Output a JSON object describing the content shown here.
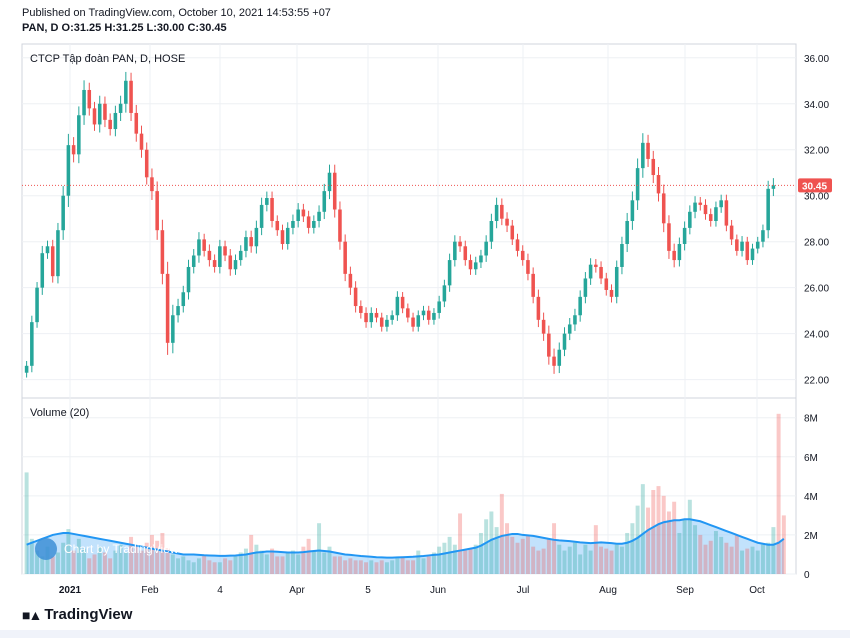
{
  "header": {
    "published": "Published on TradingView.com, October 10, 2021 14:53:55 +07",
    "ohlc": "PAN, D O:31.25 H:31.25 L:30.00 C:30.45"
  },
  "footer": {
    "brand": "TradingView"
  },
  "chart_data": {
    "type": "candlestick",
    "title": "CTCP Tập đoàn PAN, D, HOSE",
    "last_price": "30.45",
    "price_axis": {
      "ylim": [
        21.2,
        36.6
      ],
      "ticks": [
        "36.00",
        "34.00",
        "32.00",
        "30.00",
        "28.00",
        "26.00",
        "24.00",
        "22.00"
      ]
    },
    "time_axis": {
      "ticks": [
        "2021",
        "Feb",
        "4",
        "Apr",
        "5",
        "Jun",
        "Jul",
        "Aug",
        "Sep",
        "Oct"
      ]
    },
    "up_color": "#26a69a",
    "down_color": "#ef5350",
    "closes": [
      22.6,
      24.5,
      26.0,
      27.5,
      27.8,
      26.5,
      28.5,
      30.0,
      32.2,
      31.8,
      33.5,
      34.6,
      33.8,
      33.1,
      34.0,
      33.3,
      32.9,
      33.6,
      34.0,
      35.0,
      33.6,
      32.7,
      32.0,
      30.8,
      30.2,
      28.5,
      26.6,
      23.6,
      24.8,
      25.2,
      25.8,
      26.9,
      27.4,
      28.1,
      27.6,
      27.2,
      26.9,
      27.8,
      27.4,
      26.8,
      27.2,
      27.6,
      28.2,
      27.8,
      28.6,
      29.6,
      29.9,
      28.9,
      28.5,
      27.9,
      28.6,
      28.9,
      29.4,
      29.1,
      28.6,
      28.9,
      29.3,
      30.2,
      31.0,
      29.4,
      28.0,
      26.6,
      26.0,
      25.2,
      24.9,
      24.5,
      24.9,
      24.7,
      24.3,
      24.6,
      24.8,
      25.6,
      25.1,
      24.7,
      24.3,
      24.8,
      25.0,
      24.6,
      24.9,
      25.4,
      26.1,
      27.2,
      28.0,
      27.8,
      27.2,
      26.8,
      27.1,
      27.4,
      28.0,
      28.9,
      29.6,
      29.0,
      28.7,
      28.1,
      27.6,
      27.2,
      26.6,
      25.6,
      24.6,
      24.0,
      23.0,
      22.6,
      23.3,
      24.0,
      24.4,
      24.8,
      25.6,
      26.4,
      27.0,
      26.9,
      26.4,
      25.9,
      25.6,
      26.9,
      27.9,
      28.9,
      29.8,
      31.2,
      32.3,
      31.6,
      30.9,
      30.1,
      28.8,
      27.6,
      27.2,
      27.9,
      28.6,
      29.3,
      29.7,
      29.6,
      29.2,
      28.9,
      29.5,
      29.8,
      28.7,
      28.1,
      27.6,
      28.0,
      27.2,
      27.7,
      28.0,
      28.5,
      30.3,
      30.45
    ],
    "ranges": [
      0.6,
      0.8,
      0.7,
      0.9,
      0.7,
      0.8,
      0.9,
      1.2,
      1.4,
      1.0,
      1.1,
      1.2,
      0.9,
      0.8,
      1.0,
      0.9,
      0.8,
      0.9,
      1.0,
      1.1,
      1.0,
      1.0,
      1.0,
      0.9,
      1.1,
      1.2,
      1.3,
      1.5,
      1.3,
      0.9,
      0.8,
      0.9,
      0.8,
      0.9,
      0.7,
      0.8,
      0.7,
      0.8,
      0.7,
      0.8,
      0.7,
      0.7,
      0.8,
      0.8,
      0.9,
      0.9,
      0.8,
      0.8,
      0.7,
      0.7,
      0.7,
      0.8,
      0.8,
      0.7,
      0.7,
      0.7,
      0.8,
      0.9,
      1.0,
      1.0,
      1.0,
      0.9,
      0.9,
      0.8,
      0.7,
      0.7,
      0.7,
      0.6,
      0.6,
      0.6,
      0.6,
      0.7,
      0.6,
      0.6,
      0.6,
      0.6,
      0.6,
      0.6,
      0.6,
      0.7,
      0.7,
      0.8,
      0.8,
      0.7,
      0.7,
      0.7,
      0.7,
      0.7,
      0.8,
      0.9,
      0.9,
      0.8,
      0.8,
      0.7,
      0.7,
      0.7,
      0.8,
      0.8,
      0.9,
      0.9,
      1.0,
      1.0,
      0.9,
      0.8,
      0.8,
      0.8,
      0.8,
      0.8,
      0.8,
      0.7,
      0.7,
      0.7,
      0.7,
      0.8,
      0.9,
      1.0,
      1.1,
      1.2,
      1.2,
      1.0,
      1.0,
      1.0,
      1.1,
      1.0,
      0.9,
      0.8,
      0.8,
      0.8,
      0.8,
      0.7,
      0.7,
      0.7,
      0.7,
      0.7,
      0.7,
      0.7,
      0.6,
      0.7,
      0.6,
      0.6,
      0.6,
      0.7,
      1.0,
      0.9
    ],
    "volume": {
      "label": "Volume (20)",
      "ylim": [
        0,
        8.6
      ],
      "ticks": [
        "8M",
        "6M",
        "4M",
        "2M",
        "0"
      ],
      "values_m": [
        5.2,
        1.8,
        1.2,
        0.9,
        1.4,
        0.9,
        1.1,
        1.6,
        2.3,
        1.2,
        1.8,
        1.3,
        0.8,
        1.0,
        1.4,
        1.1,
        0.8,
        1.2,
        1.5,
        1.1,
        1.9,
        1.4,
        1.2,
        1.6,
        2.0,
        1.7,
        2.1,
        1.3,
        1.0,
        0.8,
        0.9,
        0.7,
        0.6,
        0.8,
        1.0,
        0.7,
        0.6,
        0.6,
        0.8,
        0.7,
        0.9,
        1.1,
        1.3,
        2.0,
        1.5,
        1.2,
        1.0,
        1.3,
        0.9,
        0.9,
        1.1,
        1.2,
        1.0,
        1.4,
        1.8,
        1.2,
        2.6,
        1.1,
        1.4,
        0.9,
        0.9,
        0.7,
        0.8,
        0.7,
        0.7,
        0.6,
        0.7,
        0.6,
        0.7,
        0.6,
        0.7,
        0.8,
        0.9,
        0.7,
        0.7,
        1.2,
        0.8,
        0.9,
        1.1,
        1.4,
        1.6,
        1.9,
        1.5,
        3.1,
        1.2,
        1.3,
        1.5,
        2.1,
        2.8,
        3.2,
        2.4,
        4.1,
        2.6,
        1.9,
        1.6,
        1.8,
        2.0,
        1.4,
        1.2,
        1.3,
        1.8,
        2.6,
        1.5,
        1.2,
        1.4,
        1.6,
        1.0,
        1.5,
        1.2,
        2.5,
        1.4,
        1.3,
        1.2,
        1.5,
        1.4,
        2.1,
        2.6,
        3.5,
        4.6,
        3.4,
        4.3,
        4.5,
        4.0,
        3.2,
        3.7,
        2.1,
        2.8,
        3.8,
        2.5,
        2.0,
        1.5,
        1.7,
        2.2,
        1.9,
        1.6,
        1.4,
        2.0,
        1.2,
        1.3,
        1.4,
        1.2,
        1.5,
        1.6,
        2.4,
        8.2,
        3.0
      ],
      "ma_m": [
        1.5,
        1.6,
        1.7,
        1.8,
        1.9,
        2.0,
        2.05,
        2.1,
        2.1,
        2.05,
        2.0,
        1.95,
        1.9,
        1.85,
        1.8,
        1.75,
        1.7,
        1.65,
        1.6,
        1.55,
        1.5,
        1.45,
        1.4,
        1.35,
        1.3,
        1.25,
        1.2,
        1.15,
        1.1,
        1.05,
        1.0,
        1.0,
        1.0,
        0.98,
        0.96,
        0.95,
        0.94,
        0.93,
        0.93,
        0.94,
        0.95,
        0.97,
        1.0,
        1.05,
        1.1,
        1.12,
        1.15,
        1.15,
        1.14,
        1.12,
        1.1,
        1.1,
        1.1,
        1.12,
        1.15,
        1.18,
        1.2,
        1.18,
        1.15,
        1.1,
        1.05,
        1.0,
        0.98,
        0.95,
        0.92,
        0.9,
        0.88,
        0.86,
        0.85,
        0.84,
        0.84,
        0.85,
        0.86,
        0.87,
        0.88,
        0.9,
        0.92,
        0.95,
        0.98,
        1.0,
        1.05,
        1.1,
        1.15,
        1.2,
        1.25,
        1.3,
        1.35,
        1.45,
        1.6,
        1.75,
        1.85,
        1.95,
        2.0,
        2.05,
        2.05,
        2.0,
        1.98,
        1.95,
        1.9,
        1.85,
        1.8,
        1.75,
        1.72,
        1.7,
        1.68,
        1.65,
        1.62,
        1.6,
        1.58,
        1.6,
        1.62,
        1.6,
        1.58,
        1.55,
        1.55,
        1.6,
        1.7,
        1.85,
        2.05,
        2.25,
        2.4,
        2.55,
        2.65,
        2.7,
        2.75,
        2.75,
        2.8,
        2.8,
        2.75,
        2.7,
        2.6,
        2.5,
        2.4,
        2.3,
        2.2,
        2.1,
        2.0,
        1.9,
        1.8,
        1.7,
        1.6,
        1.55,
        1.5,
        1.5,
        1.6,
        1.8
      ]
    }
  },
  "watermark": {
    "text": "Chart by TradingView"
  }
}
